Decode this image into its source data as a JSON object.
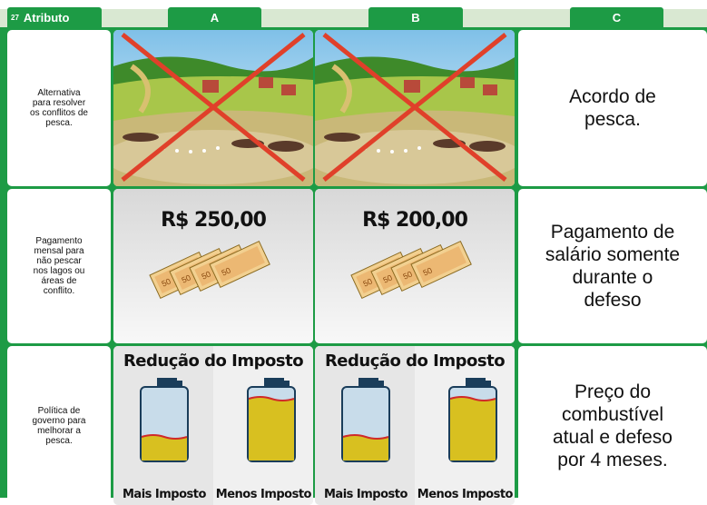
{
  "header": {
    "card_number": "27",
    "attribute_label": "Atributo",
    "columns": [
      "A",
      "B",
      "C"
    ]
  },
  "rows": [
    {
      "attribute": "Alternativa\npara resolver\nos conflitos de\npesca.",
      "C": "Acordo de\npesca."
    },
    {
      "attribute": "Pagamento\nmensal para\nnão pescar\nnos lagos ou\náreas de\nconflito.",
      "A": "R$ 250,00",
      "B": "R$ 200,00",
      "C": "Pagamento de\nsalário somente\ndurante o\ndefeso"
    },
    {
      "attribute": "Política de\ngoverno para\nmelhorar a\npesca.",
      "A": {
        "title": "Redução do Imposto",
        "left": "Mais Imposto",
        "right": "Menos Imposto"
      },
      "B": {
        "title": "Redução do Imposto",
        "left": "Mais Imposto",
        "right": "Menos Imposto"
      },
      "C": "Preço do\ncombustível\natual e defeso\npor 4 meses."
    }
  ]
}
